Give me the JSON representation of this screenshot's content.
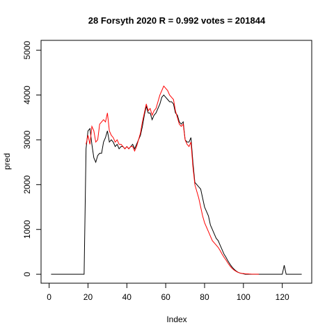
{
  "chart_data": {
    "type": "line",
    "title": "28 Forsyth 2020 R = 0.992 votes = 201844",
    "xlabel": "Index",
    "ylabel": "pred",
    "x": [
      1,
      2,
      3,
      4,
      5,
      6,
      7,
      8,
      9,
      10,
      11,
      12,
      13,
      14,
      15,
      16,
      17,
      18,
      19,
      20,
      21,
      22,
      23,
      24,
      25,
      26,
      27,
      28,
      29,
      30,
      31,
      32,
      33,
      34,
      35,
      36,
      37,
      38,
      39,
      40,
      41,
      42,
      43,
      44,
      45,
      46,
      47,
      48,
      49,
      50,
      51,
      52,
      53,
      54,
      55,
      56,
      57,
      58,
      59,
      60,
      61,
      62,
      63,
      64,
      65,
      66,
      67,
      68,
      69,
      70,
      71,
      72,
      73,
      74,
      75,
      76,
      77,
      78,
      79,
      80,
      81,
      82,
      83,
      84,
      85,
      86,
      87,
      88,
      89,
      90,
      91,
      92,
      93,
      94,
      95,
      96,
      97,
      98,
      99,
      100,
      101,
      102,
      103,
      104,
      105,
      106,
      107,
      108,
      109,
      110,
      111,
      112,
      113,
      114,
      115,
      116,
      117,
      118,
      119,
      120,
      121,
      122,
      123,
      124,
      125,
      126,
      127,
      128,
      129,
      130
    ],
    "series": [
      {
        "color": "#000000",
        "values": [
          0,
          0,
          0,
          0,
          0,
          0,
          0,
          0,
          0,
          0,
          0,
          0,
          0,
          0,
          0,
          0,
          0,
          0,
          2800,
          3200,
          3250,
          2900,
          2600,
          2500,
          2650,
          2700,
          2700,
          2950,
          3050,
          3200,
          2950,
          3000,
          2950,
          2850,
          2900,
          2800,
          2850,
          2850,
          2800,
          2850,
          2800,
          2850,
          2900,
          2800,
          2900,
          3000,
          3100,
          3300,
          3550,
          3750,
          3600,
          3600,
          3450,
          3550,
          3600,
          3700,
          3800,
          3950,
          4000,
          3950,
          3900,
          3850,
          3850,
          3800,
          3600,
          3550,
          3400,
          3350,
          3400,
          3000,
          2950,
          2950,
          3050,
          2500,
          2050,
          2000,
          1950,
          1900,
          1700,
          1500,
          1400,
          1300,
          1100,
          1000,
          900,
          800,
          750,
          650,
          550,
          450,
          380,
          300,
          230,
          170,
          120,
          80,
          50,
          30,
          20,
          10,
          0,
          0,
          0,
          0,
          0,
          0,
          0,
          0,
          0,
          0,
          0,
          0,
          0,
          0,
          0,
          0,
          0,
          0,
          0,
          0,
          200,
          0,
          0,
          0,
          0,
          0,
          0,
          0,
          0,
          0
        ]
      },
      {
        "color": "#ff0000",
        "values": [
          null,
          null,
          null,
          null,
          null,
          null,
          null,
          null,
          null,
          null,
          null,
          null,
          null,
          null,
          null,
          null,
          null,
          null,
          2900,
          3100,
          2900,
          3300,
          3200,
          2950,
          3000,
          3350,
          3400,
          3450,
          3400,
          3600,
          3200,
          3100,
          3050,
          2950,
          3000,
          2900,
          2900,
          2850,
          2800,
          2850,
          2800,
          2850,
          2850,
          2750,
          2850,
          3000,
          3150,
          3400,
          3600,
          3800,
          3650,
          3700,
          3550,
          3650,
          3700,
          3850,
          4000,
          4100,
          4200,
          4150,
          4100,
          4000,
          3950,
          3900,
          3650,
          3500,
          3350,
          3300,
          3350,
          3000,
          2900,
          2850,
          2950,
          2400,
          2000,
          1850,
          1700,
          1500,
          1300,
          1150,
          1050,
          950,
          850,
          750,
          700,
          650,
          600,
          530,
          450,
          380,
          320,
          250,
          190,
          140,
          100,
          70,
          45,
          30,
          20,
          15,
          10,
          8,
          5,
          3,
          2,
          1,
          1,
          0,
          null,
          null,
          null,
          null,
          null,
          null,
          null,
          null,
          null,
          null,
          null,
          null,
          null,
          null,
          null,
          null,
          null,
          null,
          null,
          null,
          null,
          null
        ]
      }
    ],
    "xlim": [
      -4.16,
      135.16
    ],
    "ylim": [
      -200,
      5220
    ],
    "xticks": [
      0,
      20,
      40,
      60,
      80,
      100,
      120
    ],
    "yticks": [
      0,
      1000,
      2000,
      3000,
      4000,
      5000
    ]
  }
}
